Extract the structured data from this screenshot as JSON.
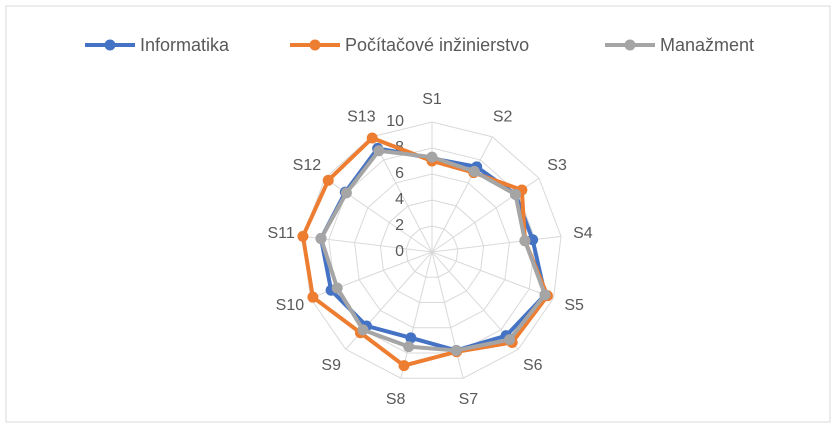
{
  "chart_data": {
    "type": "radar",
    "categories": [
      "S1",
      "S2",
      "S3",
      "S4",
      "S5",
      "S6",
      "S7",
      "S8",
      "S9",
      "S10",
      "S11",
      "S12",
      "S13"
    ],
    "series": [
      {
        "name": "Informatika",
        "color": "#4472c4",
        "values": [
          7.2,
          7.4,
          7.8,
          7.8,
          9.3,
          8.6,
          7.8,
          6.8,
          7.6,
          8.3,
          8.6,
          8.1,
          9.0
        ]
      },
      {
        "name": "Počítačové inžinierstvo",
        "color": "#ed7d31",
        "values": [
          7.0,
          6.9,
          8.4,
          7.2,
          9.5,
          9.3,
          7.9,
          9.0,
          8.3,
          9.8,
          10.0,
          9.7,
          9.9
        ]
      },
      {
        "name": "Manažment",
        "color": "#a5a5a5",
        "values": [
          7.3,
          7.0,
          7.8,
          7.2,
          9.3,
          9.0,
          7.8,
          7.5,
          8.0,
          7.8,
          8.6,
          8.0,
          8.8
        ]
      }
    ],
    "ylim": [
      0,
      10
    ],
    "yticks": [
      0,
      2,
      4,
      6,
      8,
      10
    ],
    "grid": true,
    "legend": "top"
  }
}
